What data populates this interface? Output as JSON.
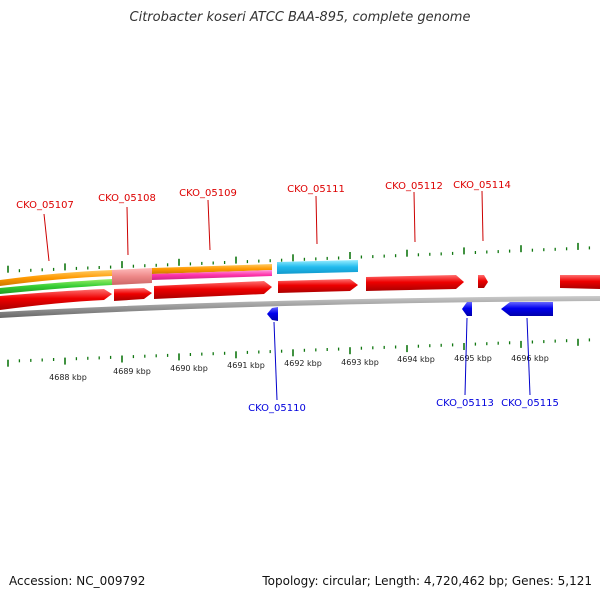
{
  "title": "Citrobacter koseri ATCC BAA-895, complete genome",
  "footer": {
    "accession": "Accession: NC_009792",
    "summary": "Topology: circular; Length: 4,720,462 bp; Genes: 5,121"
  },
  "colors": {
    "forward": "#ee0000",
    "reverse": "#0000ee",
    "tick": "#117711",
    "ring": "#888888",
    "orange": "#ff9900",
    "green": "#33cc33",
    "magenta": "#ff33aa",
    "cyan": "#22bbee",
    "pink": "#ee8888"
  },
  "scale_labels": [
    "4688 kbp",
    "4689 kbp",
    "4690 kbp",
    "4691 kbp",
    "4692 kbp",
    "4693 kbp",
    "4694 kbp",
    "4695 kbp",
    "4696 kbp"
  ],
  "forward_labels": [
    "CKO_05107",
    "CKO_05108",
    "CKO_05109",
    "CKO_05111",
    "CKO_05112",
    "CKO_05114"
  ],
  "reverse_labels": [
    "CKO_05110",
    "CKO_05113",
    "CKO_05115"
  ]
}
